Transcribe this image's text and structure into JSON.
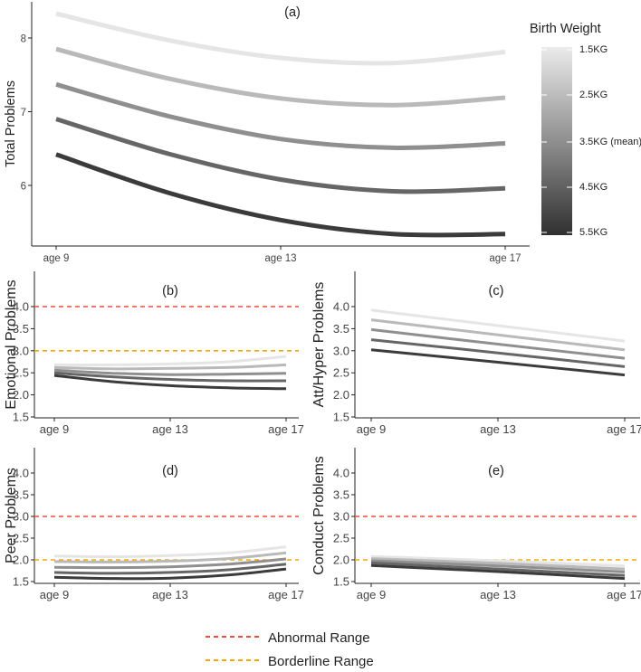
{
  "legend": {
    "title": "Birth Weight",
    "labels": [
      "1.5KG",
      "2.5KG",
      "3.5KG (mean)",
      "4.5KG",
      "5.5KG"
    ],
    "series_colors": [
      "#e5e5e5",
      "#b9b9b9",
      "#8f8f8f",
      "#666666",
      "#3b3b3b"
    ],
    "ref_lines": [
      {
        "label": "Abnormal Range",
        "color": "#ef4b3c"
      },
      {
        "label": "Borderline Range",
        "color": "#f5a700"
      }
    ]
  },
  "chart_data": [
    {
      "id": "a",
      "type": "line",
      "title": "(a)",
      "ylabel": "Total Problems",
      "xlabel": "",
      "x": [
        9,
        11,
        13,
        15,
        17
      ],
      "xticks": [
        "age 9",
        "age 13",
        "age 17"
      ],
      "xtick_values": [
        9,
        13,
        17
      ],
      "ylim": [
        5.2,
        8.48
      ],
      "yticks": [
        6,
        7,
        8
      ],
      "grid": false,
      "series": [
        {
          "name": "1.5KG",
          "values": [
            8.33,
            7.97,
            7.73,
            7.66,
            7.81
          ]
        },
        {
          "name": "2.5KG",
          "values": [
            7.85,
            7.45,
            7.18,
            7.09,
            7.19
          ]
        },
        {
          "name": "3.5KG (mean)",
          "values": [
            7.37,
            6.94,
            6.63,
            6.51,
            6.57
          ]
        },
        {
          "name": "4.5KG",
          "values": [
            6.9,
            6.43,
            6.08,
            5.92,
            5.96
          ]
        },
        {
          "name": "5.5KG",
          "values": [
            6.42,
            5.9,
            5.53,
            5.34,
            5.34
          ]
        }
      ],
      "ref_lines": []
    },
    {
      "id": "b",
      "type": "line",
      "title": "(b)",
      "ylabel": "Emotional Problems",
      "xlabel": "",
      "x": [
        9,
        11,
        13,
        15,
        17
      ],
      "xticks": [
        "age 9",
        "age 13",
        "age 17"
      ],
      "xtick_values": [
        9,
        13,
        17
      ],
      "ylim": [
        1.5,
        4.15
      ],
      "yticks": [
        "1.5",
        "2.0",
        "2.5",
        "3.0",
        "3.5",
        "4.0"
      ],
      "grid": false,
      "series": [
        {
          "name": "1.5KG",
          "values": [
            2.68,
            2.68,
            2.7,
            2.75,
            2.87
          ]
        },
        {
          "name": "2.5KG",
          "values": [
            2.62,
            2.59,
            2.6,
            2.62,
            2.68
          ]
        },
        {
          "name": "3.5KG (mean)",
          "values": [
            2.56,
            2.49,
            2.46,
            2.47,
            2.49
          ]
        },
        {
          "name": "4.5KG",
          "values": [
            2.5,
            2.41,
            2.35,
            2.32,
            2.32
          ]
        },
        {
          "name": "5.5KG",
          "values": [
            2.44,
            2.3,
            2.21,
            2.16,
            2.14
          ]
        }
      ],
      "ref_lines": [
        {
          "name": "Abnormal Range",
          "value": 4.0
        },
        {
          "name": "Borderline Range",
          "value": 3.0
        }
      ]
    },
    {
      "id": "c",
      "type": "line",
      "title": "(c)",
      "ylabel": "Att/Hyper Problems",
      "xlabel": "",
      "x": [
        9,
        13,
        17
      ],
      "xticks": [
        "age 9",
        "age 13",
        "age 17"
      ],
      "xtick_values": [
        9,
        13,
        17
      ],
      "ylim": [
        1.5,
        4.15
      ],
      "yticks": [
        "1.5",
        "2.0",
        "2.5",
        "3.0",
        "3.5",
        "4.0"
      ],
      "grid": false,
      "series": [
        {
          "name": "1.5KG",
          "values": [
            3.92,
            3.57,
            3.22
          ]
        },
        {
          "name": "2.5KG",
          "values": [
            3.7,
            3.36,
            3.02
          ]
        },
        {
          "name": "3.5KG (mean)",
          "values": [
            3.48,
            3.15,
            2.83
          ]
        },
        {
          "name": "4.5KG",
          "values": [
            3.25,
            2.95,
            2.64
          ]
        },
        {
          "name": "5.5KG",
          "values": [
            3.02,
            2.74,
            2.45
          ]
        }
      ],
      "ref_lines": []
    },
    {
      "id": "d",
      "type": "line",
      "title": "(d)",
      "ylabel": "Peer Problems",
      "xlabel": "",
      "x": [
        9,
        11,
        13,
        15,
        17
      ],
      "xticks": [
        "age 9",
        "age 13",
        "age 17"
      ],
      "xtick_values": [
        9,
        13,
        17
      ],
      "ylim": [
        1.5,
        4.15
      ],
      "yticks": [
        "1.5",
        "2.0",
        "2.5",
        "3.0",
        "3.5",
        "4.0"
      ],
      "grid": false,
      "series": [
        {
          "name": "1.5KG",
          "values": [
            2.09,
            2.07,
            2.1,
            2.16,
            2.3
          ]
        },
        {
          "name": "2.5KG",
          "values": [
            1.96,
            1.95,
            1.97,
            2.03,
            2.16
          ]
        },
        {
          "name": "3.5KG (mean)",
          "values": [
            1.83,
            1.82,
            1.84,
            1.9,
            2.02
          ]
        },
        {
          "name": "4.5KG",
          "values": [
            1.71,
            1.69,
            1.71,
            1.77,
            1.9
          ]
        },
        {
          "name": "5.5KG",
          "values": [
            1.6,
            1.57,
            1.58,
            1.65,
            1.79
          ]
        }
      ],
      "ref_lines": [
        {
          "name": "Abnormal Range",
          "value": 3.0
        },
        {
          "name": "Borderline Range",
          "value": 2.0
        }
      ]
    },
    {
      "id": "e",
      "type": "line",
      "title": "(e)",
      "ylabel": "Conduct Problems",
      "xlabel": "",
      "x": [
        9,
        13,
        17
      ],
      "xticks": [
        "age 9",
        "age 13",
        "age 17"
      ],
      "xtick_values": [
        9,
        13,
        17
      ],
      "ylim": [
        1.5,
        4.15
      ],
      "yticks": [
        "1.5",
        "2.0",
        "2.5",
        "3.0",
        "3.5",
        "4.0"
      ],
      "grid": false,
      "series": [
        {
          "name": "1.5KG",
          "values": [
            2.08,
            1.98,
            1.86
          ]
        },
        {
          "name": "2.5KG",
          "values": [
            2.03,
            1.92,
            1.79
          ]
        },
        {
          "name": "3.5KG (mean)",
          "values": [
            1.98,
            1.86,
            1.72
          ]
        },
        {
          "name": "4.5KG",
          "values": [
            1.93,
            1.79,
            1.64
          ]
        },
        {
          "name": "5.5KG",
          "values": [
            1.87,
            1.73,
            1.57
          ]
        }
      ],
      "ref_lines": [
        {
          "name": "Abnormal Range",
          "value": 3.0
        },
        {
          "name": "Borderline Range",
          "value": 2.0
        }
      ]
    }
  ]
}
